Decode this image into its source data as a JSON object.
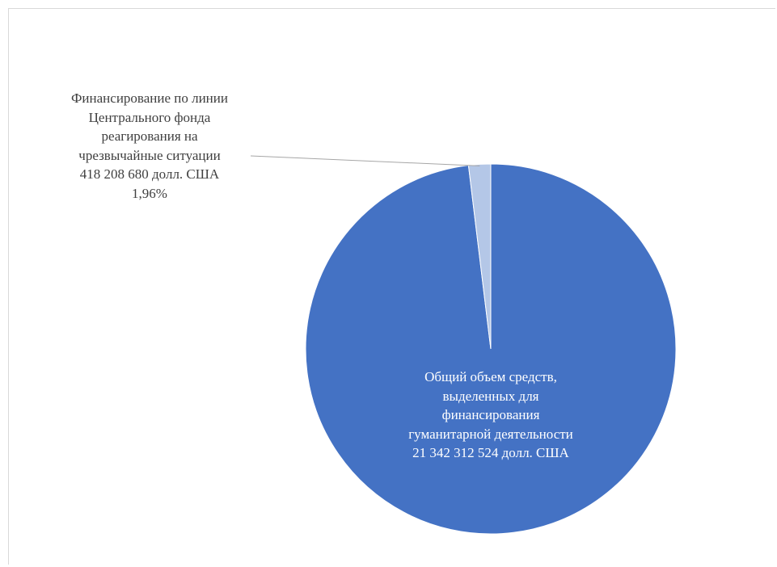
{
  "chart_data": {
    "type": "pie",
    "title": "",
    "slices": [
      {
        "label_lines": [
          "Общий объем средств,",
          "выделенных  для",
          "финансирования",
          "гуманитарной деятельности",
          "21  342  312  524  долл.  США"
        ],
        "value": 21342312524,
        "color": "#4472c4"
      },
      {
        "label_lines": [
          "Финансирование по линии",
          "Центрального  фонда",
          "реагирования на",
          "чрезвычайные ситуации",
          "418  208  680  долл.  США",
          "1,96%"
        ],
        "value": 418208680,
        "color": "#b4c7e7"
      }
    ],
    "start_angle_deg": 0,
    "direction": "clockwise",
    "legend": "none",
    "leader_line_color": "#a6a6a6"
  }
}
